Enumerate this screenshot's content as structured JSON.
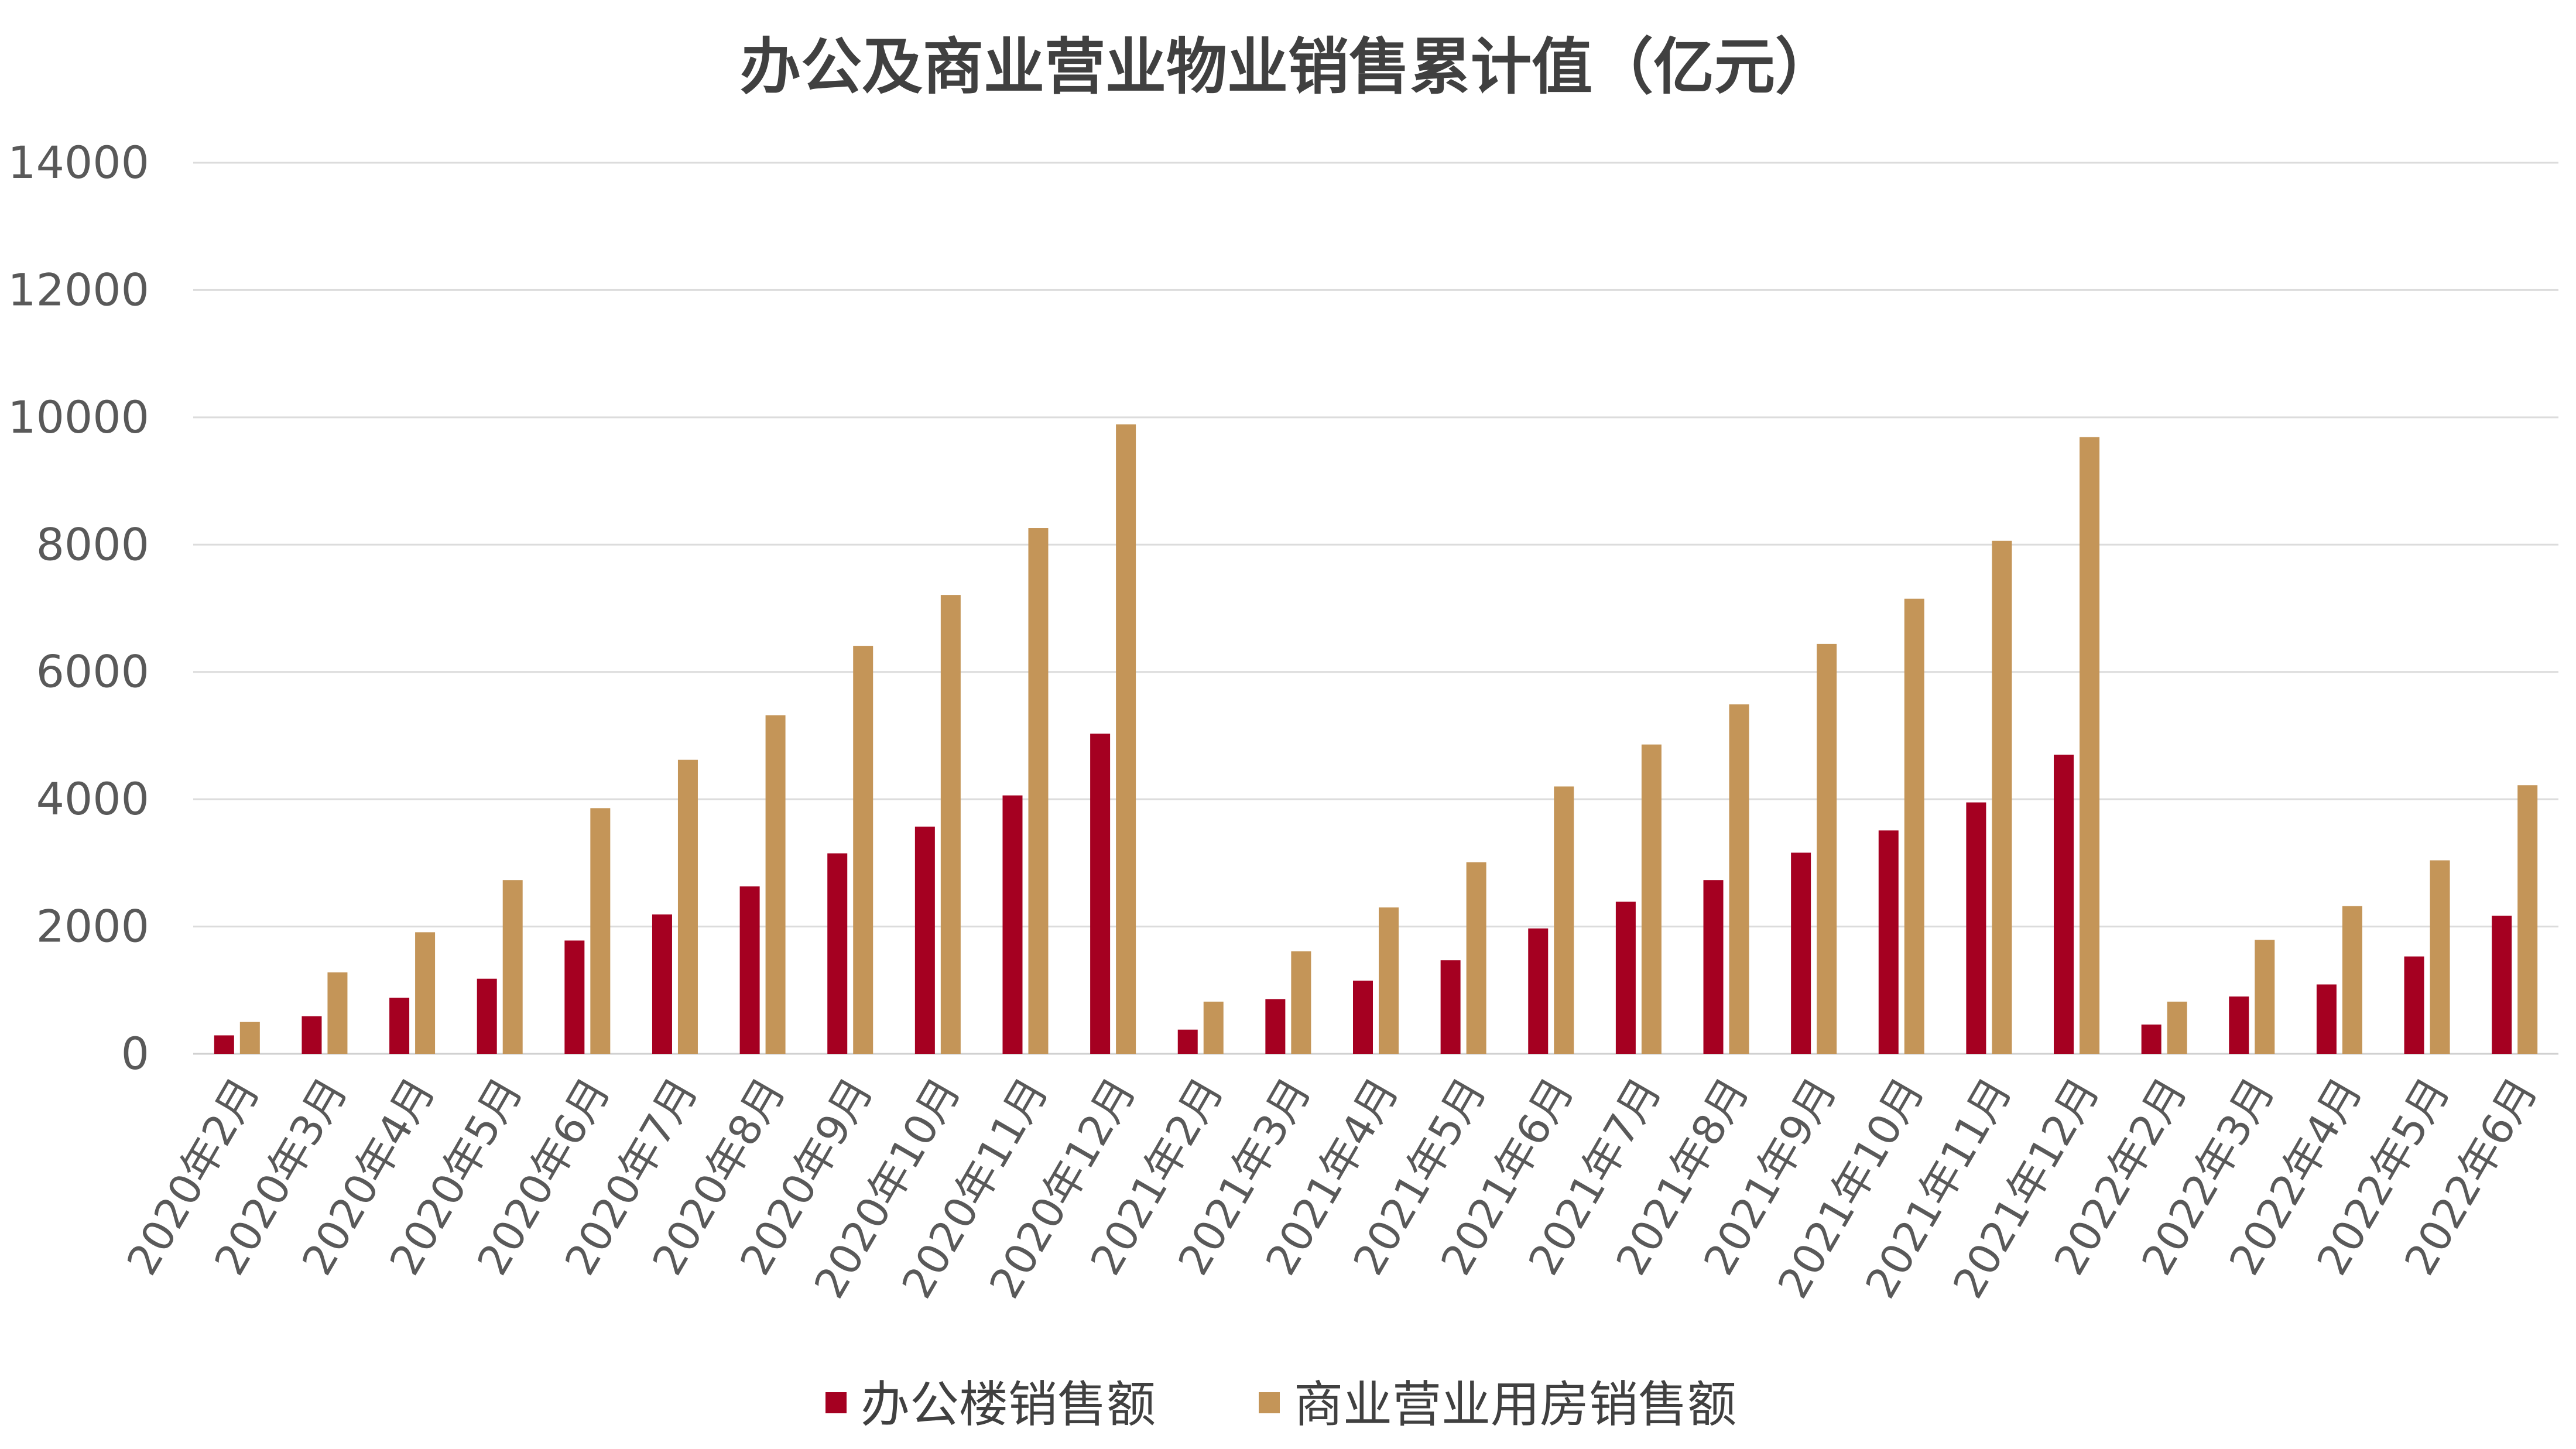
{
  "chart_data": {
    "type": "bar",
    "title": "办公及商业营业物业销售累计值（亿元）",
    "xlabel": "",
    "ylabel": "",
    "ylim": [
      0,
      14000
    ],
    "yticks": [
      0,
      2000,
      4000,
      6000,
      8000,
      10000,
      12000,
      14000
    ],
    "grid": true,
    "legend_position": "bottom",
    "categories": [
      "2020年2月",
      "2020年3月",
      "2020年4月",
      "2020年5月",
      "2020年6月",
      "2020年7月",
      "2020年8月",
      "2020年9月",
      "2020年10月",
      "2020年11月",
      "2020年12月",
      "2021年2月",
      "2021年3月",
      "2021年4月",
      "2021年5月",
      "2021年6月",
      "2021年7月",
      "2021年8月",
      "2021年9月",
      "2021年10月",
      "2021年11月",
      "2021年12月",
      "2022年2月",
      "2022年3月",
      "2022年4月",
      "2022年5月",
      "2022年6月"
    ],
    "series": [
      {
        "name": "办公楼销售额",
        "color": "#A50021",
        "values": [
          290,
          590,
          880,
          1180,
          1780,
          2190,
          2630,
          3150,
          3570,
          4060,
          5030,
          380,
          860,
          1150,
          1470,
          1970,
          2390,
          2730,
          3160,
          3510,
          3950,
          4700,
          460,
          900,
          1090,
          1530,
          2170
        ]
      },
      {
        "name": "商业营业用房销售额",
        "color": "#C49558",
        "values": [
          500,
          1280,
          1910,
          2730,
          3860,
          4620,
          5320,
          6410,
          7210,
          8260,
          9890,
          820,
          1610,
          2300,
          3010,
          4200,
          4860,
          5490,
          6440,
          7150,
          8060,
          9690,
          820,
          1790,
          2320,
          3040,
          4220
        ]
      }
    ]
  }
}
